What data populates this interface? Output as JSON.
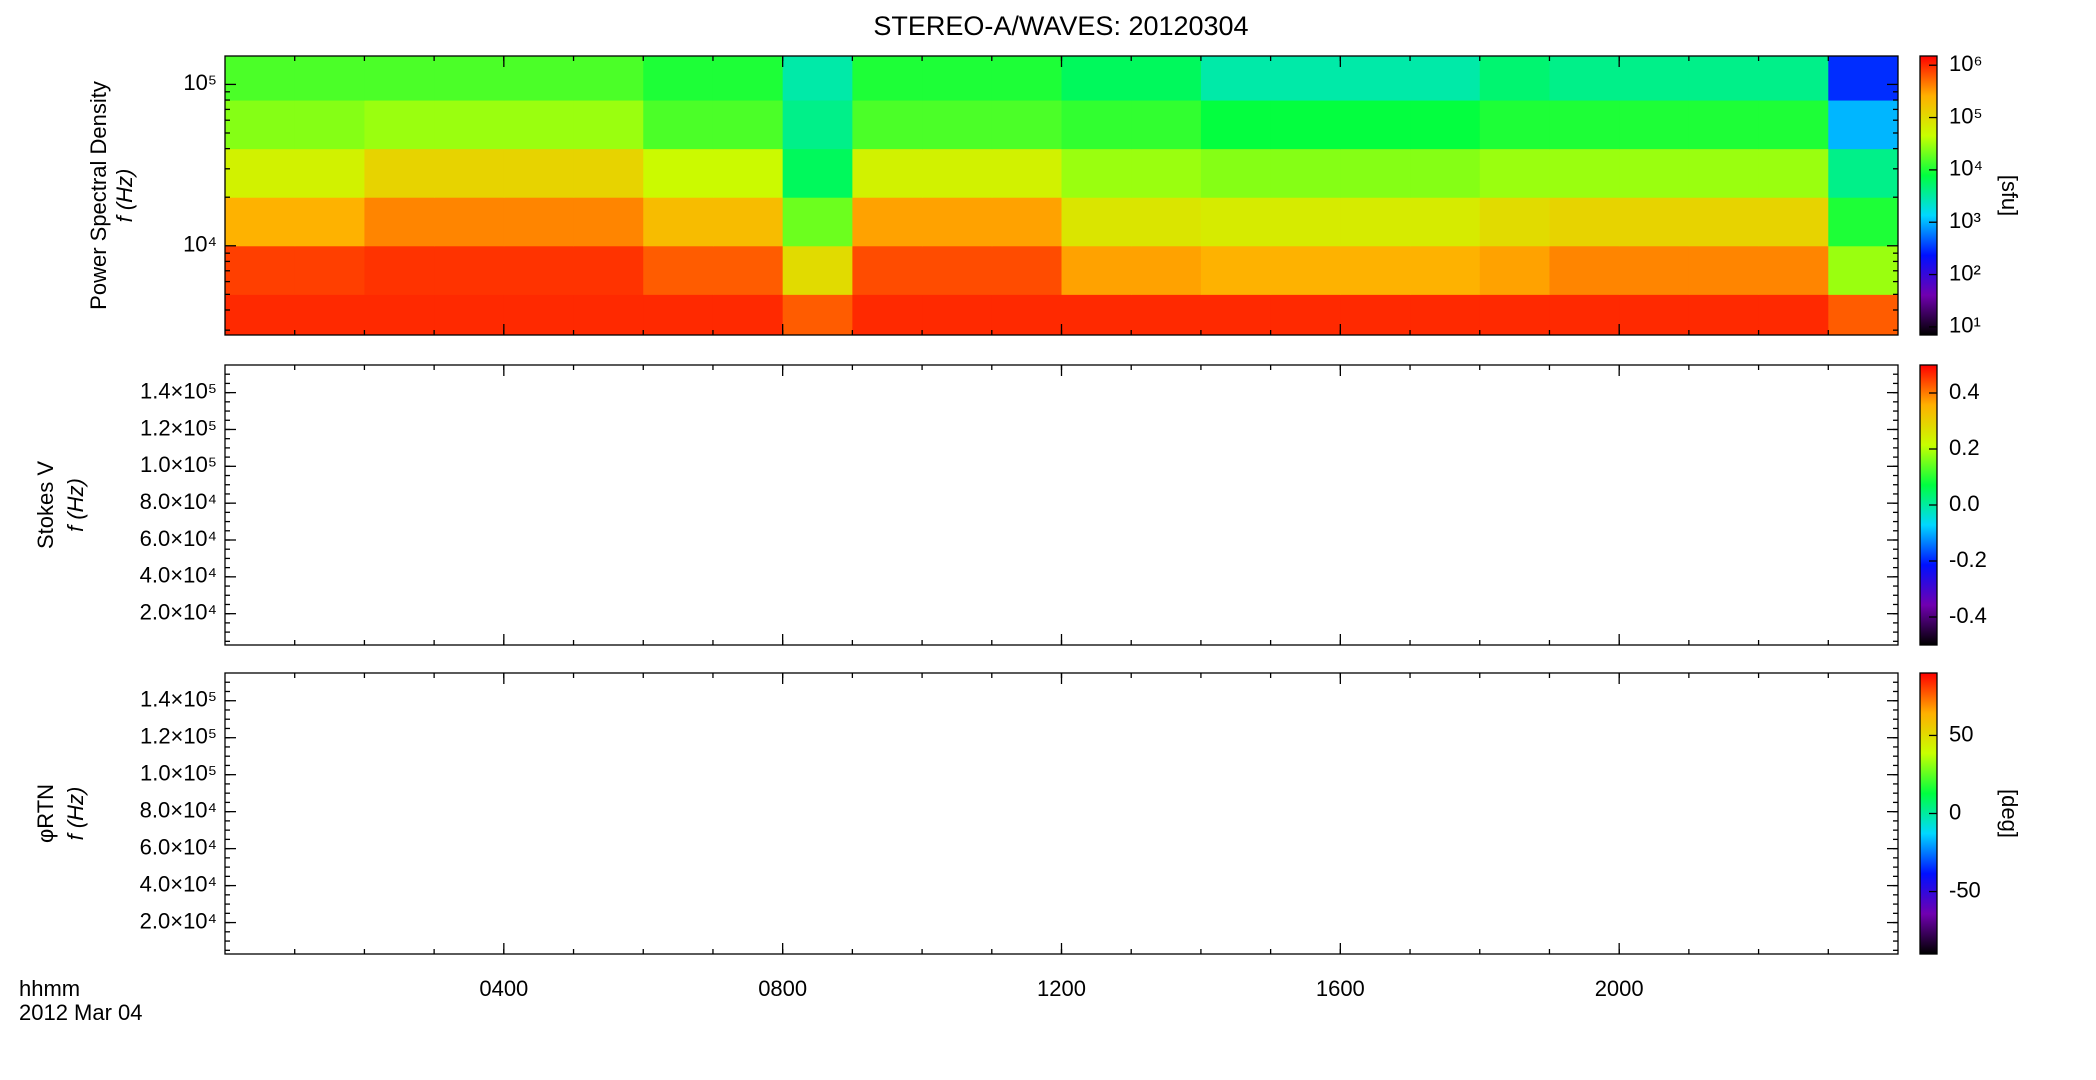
{
  "title": "STEREO-A/WAVES: 20120304",
  "x_axis": {
    "xlim": [
      0,
      24
    ],
    "xticks": [
      {
        "value": 4,
        "label": "0400"
      },
      {
        "value": 8,
        "label": "0800"
      },
      {
        "value": 12,
        "label": "1200"
      },
      {
        "value": 16,
        "label": "1600"
      },
      {
        "value": 20,
        "label": "2000"
      }
    ],
    "label": [
      "hhmm",
      "2012 Mar 04"
    ]
  },
  "colormap": [
    "#000000",
    "#7000b0",
    "#0010ff",
    "#00d8ff",
    "#00ff40",
    "#c8ff00",
    "#ffb000",
    "#ff0000"
  ],
  "chart_data": [
    {
      "type": "heatmap",
      "ylabel": [
        "Power Spectral Density",
        "f (Hz)"
      ],
      "ylog": true,
      "ylim": [
        2800,
        150000
      ],
      "yticks": [
        {
          "value": 10000,
          "label": "10⁴"
        },
        {
          "value": 100000,
          "label": "10⁵"
        }
      ],
      "x_edges": [
        0,
        1,
        2,
        3,
        4,
        5,
        6,
        7,
        8,
        9,
        10,
        11,
        12,
        13,
        14,
        15,
        16,
        17,
        18,
        19,
        20,
        21,
        22,
        23,
        24
      ],
      "y_edges": [
        2800,
        5000,
        10000,
        20000,
        40000,
        80000,
        150000
      ],
      "z": [
        [
          1000000,
          1000000,
          1000000,
          1000000,
          1000000,
          1000000,
          1000000,
          1000000,
          600000,
          1000000,
          1000000,
          1000000,
          1000000,
          1000000,
          1000000,
          1000000,
          1000000,
          1000000,
          1000000,
          1000000,
          1000000,
          1000000,
          1000000,
          600000
        ],
        [
          800000,
          800000,
          900000,
          900000,
          900000,
          900000,
          600000,
          600000,
          100000,
          700000,
          700000,
          700000,
          300000,
          300000,
          250000,
          250000,
          250000,
          250000,
          300000,
          400000,
          400000,
          400000,
          400000,
          30000
        ],
        [
          250000,
          250000,
          400000,
          400000,
          400000,
          400000,
          200000,
          200000,
          20000,
          300000,
          300000,
          300000,
          80000,
          80000,
          70000,
          70000,
          70000,
          70000,
          100000,
          120000,
          120000,
          120000,
          120000,
          10000
        ],
        [
          60000,
          60000,
          120000,
          120000,
          120000,
          120000,
          50000,
          50000,
          6000,
          60000,
          60000,
          60000,
          30000,
          30000,
          25000,
          25000,
          25000,
          25000,
          30000,
          30000,
          30000,
          30000,
          30000,
          4000
        ],
        [
          25000,
          25000,
          30000,
          30000,
          30000,
          30000,
          15000,
          15000,
          4000,
          15000,
          15000,
          15000,
          12000,
          12000,
          8000,
          8000,
          8000,
          8000,
          10000,
          10000,
          10000,
          10000,
          10000,
          1000
        ],
        [
          15000,
          15000,
          15000,
          15000,
          15000,
          15000,
          10000,
          10000,
          3000,
          10000,
          10000,
          10000,
          6000,
          6000,
          3000,
          3000,
          3000,
          3000,
          5000,
          4000,
          4000,
          4000,
          4000,
          300
        ]
      ],
      "clog": true,
      "clim": [
        7,
        1500000
      ],
      "cticks": [
        {
          "value": 10,
          "label": "10¹"
        },
        {
          "value": 100,
          "label": "10²"
        },
        {
          "value": 1000,
          "label": "10³"
        },
        {
          "value": 10000,
          "label": "10⁴"
        },
        {
          "value": 100000,
          "label": "10⁵"
        },
        {
          "value": 1000000,
          "label": "10⁶"
        }
      ],
      "clabel": "[sfu]"
    },
    {
      "type": "heatmap",
      "ylabel": [
        "Stokes V",
        "f (Hz)"
      ],
      "ylim": [
        3000,
        155000
      ],
      "yticks": [
        {
          "value": 20000,
          "label": "2.0×10⁴"
        },
        {
          "value": 40000,
          "label": "4.0×10⁴"
        },
        {
          "value": 60000,
          "label": "6.0×10⁴"
        },
        {
          "value": 80000,
          "label": "8.0×10⁴"
        },
        {
          "value": 100000,
          "label": "1.0×10⁵"
        },
        {
          "value": 120000,
          "label": "1.2×10⁵"
        },
        {
          "value": 140000,
          "label": "1.4×10⁵"
        }
      ],
      "clim": [
        -0.5,
        0.5
      ],
      "cticks": [
        -0.4,
        -0.2,
        {
          "value": 0,
          "label": "0.0"
        },
        0.2,
        0.4
      ]
    },
    {
      "type": "heatmap",
      "ylabel": [
        "φRTN",
        "f (Hz)"
      ],
      "ylim": [
        3000,
        155000
      ],
      "yticks": [
        {
          "value": 20000,
          "label": "2.0×10⁴"
        },
        {
          "value": 40000,
          "label": "4.0×10⁴"
        },
        {
          "value": 60000,
          "label": "6.0×10⁴"
        },
        {
          "value": 80000,
          "label": "8.0×10⁴"
        },
        {
          "value": 100000,
          "label": "1.0×10⁵"
        },
        {
          "value": 120000,
          "label": "1.2×10⁵"
        },
        {
          "value": 140000,
          "label": "1.4×10⁵"
        }
      ],
      "clim": [
        -90,
        90
      ],
      "cticks": [
        -50,
        0,
        50
      ],
      "clabel": "[deg]"
    }
  ]
}
